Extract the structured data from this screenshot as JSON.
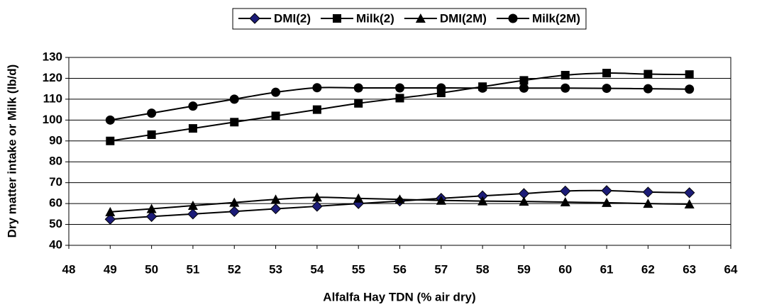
{
  "chart_data": {
    "type": "line",
    "x_label": "Alfalfa Hay TDN (% air dry)",
    "y_label": "Dry matter intake or Milk (lb/d)",
    "x": [
      49,
      50,
      51,
      52,
      53,
      54,
      55,
      56,
      57,
      58,
      59,
      60,
      61,
      62,
      63
    ],
    "xlim": [
      48,
      64
    ],
    "xticks": [
      48,
      49,
      50,
      51,
      52,
      53,
      54,
      55,
      56,
      57,
      58,
      59,
      60,
      61,
      62,
      63,
      64
    ],
    "ylim": [
      40,
      130
    ],
    "yticks": [
      40,
      50,
      60,
      70,
      80,
      90,
      100,
      110,
      120,
      130
    ],
    "grid": true,
    "legend": "top",
    "smooth": true,
    "series": [
      {
        "name": "DMI(2)",
        "color": "#000000",
        "marker": "diamond",
        "marker_color": "#1c1c78",
        "values": [
          52.5,
          53.8,
          55,
          56.2,
          57.5,
          58.7,
          60,
          61.2,
          62.5,
          63.7,
          64.8,
          66,
          66.2,
          65.5,
          65.2
        ]
      },
      {
        "name": "Milk(2)",
        "color": "#000000",
        "marker": "square",
        "marker_color": "#000000",
        "values": [
          90,
          93,
          96,
          99,
          102,
          105,
          108,
          110.5,
          113,
          116,
          119,
          121.5,
          122.5,
          122,
          121.8
        ]
      },
      {
        "name": "DMI(2M)",
        "color": "#000000",
        "marker": "triangle",
        "marker_color": "#000000",
        "values": [
          56,
          57.5,
          59,
          60.5,
          62,
          63,
          62.5,
          62,
          61.5,
          61.2,
          61,
          60.7,
          60.4,
          60,
          59.7
        ]
      },
      {
        "name": "Milk(2M)",
        "color": "#000000",
        "marker": "circle",
        "marker_color": "#000000",
        "values": [
          100,
          103.3,
          106.7,
          110,
          113.3,
          115.5,
          115.4,
          115.4,
          115.4,
          115.3,
          115.3,
          115.3,
          115.2,
          115,
          114.8
        ]
      }
    ]
  }
}
